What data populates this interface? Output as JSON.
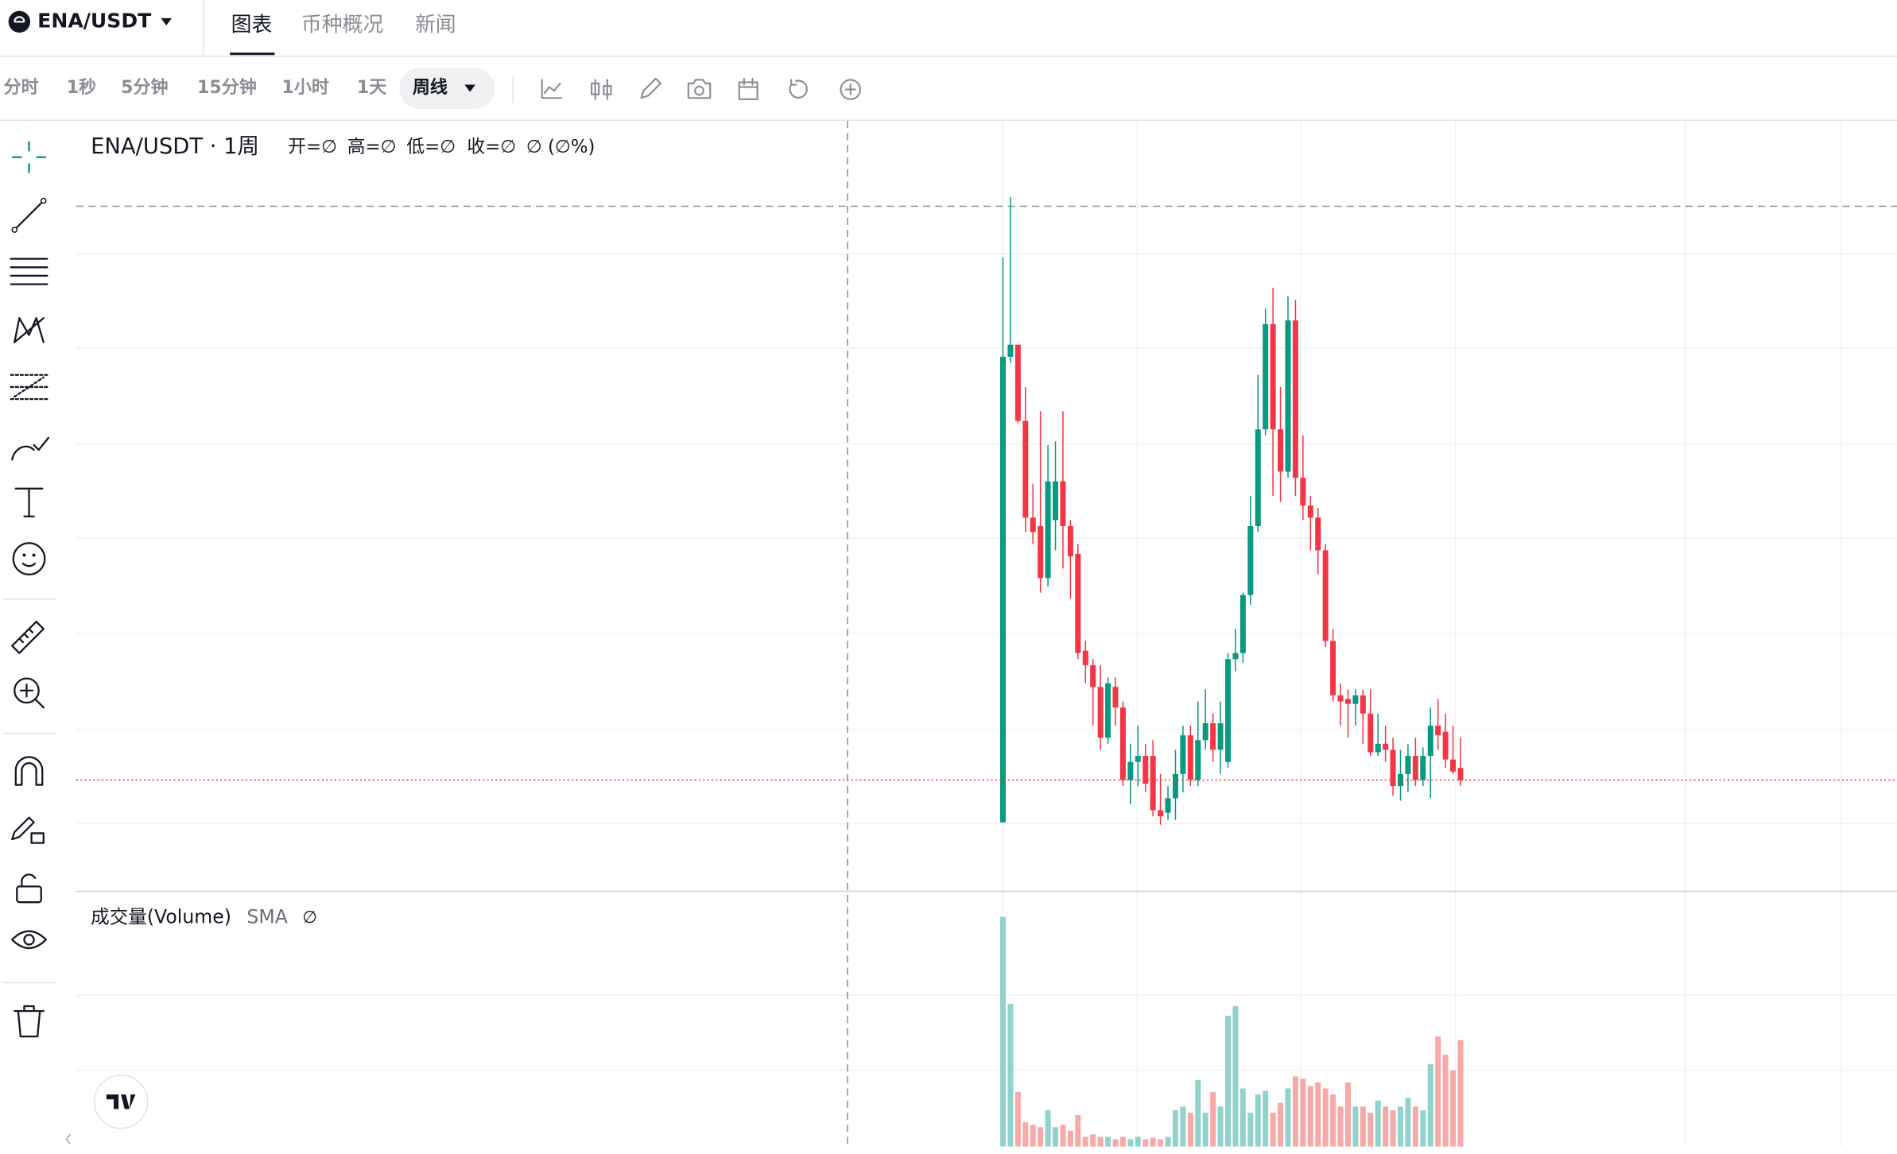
{
  "header": {
    "symbol": "ENA/USDT",
    "tabs": [
      "图表",
      "币种概况",
      "新闻"
    ]
  },
  "toolbar": {
    "intervals": [
      "分时",
      "1秒",
      "5分钟",
      "15分钟",
      "1小时",
      "1天",
      "周线"
    ]
  },
  "chart_data": {
    "type": "candlestick",
    "title": "ENA/USDT · 1周",
    "legend": [
      "开=∅",
      "高=∅",
      "低=∅",
      "收=∅",
      "∅ (∅%)"
    ],
    "volume_title": "成交量(Volume)",
    "volume_sma": "SMA",
    "volume_sma_value": "∅",
    "up_color": "#089981",
    "down_color": "#f23645",
    "volume_up_color": "#92d2cc",
    "volume_down_color": "#f7a9a7",
    "ylim": [
      0.06,
      1.65
    ],
    "volume_ylim": [
      0,
      200
    ],
    "last_price_line": true,
    "ohlc": [
      [
        0.2,
        1.3675,
        0.2,
        1.1625
      ],
      [
        1.1625,
        1.4925,
        1.15,
        1.1875
      ],
      [
        1.1875,
        1.1875,
        1.025,
        1.03
      ],
      [
        1.03,
        1.1,
        0.8,
        0.83
      ],
      [
        0.83,
        0.9,
        0.775,
        0.8
      ],
      [
        0.8125,
        1.05,
        0.675,
        0.705
      ],
      [
        0.705,
        0.98,
        0.6875,
        0.905
      ],
      [
        0.825,
        0.9875,
        0.7625,
        0.905
      ],
      [
        0.905,
        1.05,
        0.725,
        0.8125
      ],
      [
        0.8125,
        0.825,
        0.6625,
        0.75
      ],
      [
        0.755,
        0.775,
        0.5375,
        0.55
      ],
      [
        0.555,
        0.575,
        0.4875,
        0.525
      ],
      [
        0.525,
        0.5375,
        0.4,
        0.48
      ],
      [
        0.48,
        0.525,
        0.35,
        0.375
      ],
      [
        0.375,
        0.5,
        0.3625,
        0.4875
      ],
      [
        0.48,
        0.5,
        0.4,
        0.4375
      ],
      [
        0.4375,
        0.45,
        0.275,
        0.2875
      ],
      [
        0.2875,
        0.3625,
        0.2375,
        0.325
      ],
      [
        0.325,
        0.4,
        0.275,
        0.3375
      ],
      [
        0.3375,
        0.3625,
        0.2625,
        0.28
      ],
      [
        0.3375,
        0.37,
        0.2125,
        0.225
      ],
      [
        0.225,
        0.3,
        0.195,
        0.2125
      ],
      [
        0.22,
        0.275,
        0.205,
        0.25
      ],
      [
        0.25,
        0.35,
        0.205,
        0.3
      ],
      [
        0.3,
        0.4,
        0.2625,
        0.38
      ],
      [
        0.38,
        0.4,
        0.275,
        0.2875
      ],
      [
        0.2875,
        0.45,
        0.275,
        0.37
      ],
      [
        0.37,
        0.475,
        0.35,
        0.405
      ],
      [
        0.405,
        0.425,
        0.325,
        0.35
      ],
      [
        0.35,
        0.45,
        0.3,
        0.405
      ],
      [
        0.325,
        0.55,
        0.3125,
        0.5375
      ],
      [
        0.5375,
        0.6,
        0.5125,
        0.55
      ],
      [
        0.55,
        0.675,
        0.53,
        0.67
      ],
      [
        0.67,
        0.875,
        0.65,
        0.8125
      ],
      [
        0.8125,
        1.125,
        0.8,
        1.0125
      ],
      [
        1.0125,
        1.2625,
        1.0,
        1.23
      ],
      [
        1.23,
        1.305,
        0.875,
        1.0125
      ],
      [
        1.0125,
        1.1,
        0.8625,
        0.925
      ],
      [
        0.925,
        1.2875,
        0.9125,
        1.2375
      ],
      [
        1.2375,
        1.28,
        0.875,
        0.9125
      ],
      [
        0.9125,
        1.0,
        0.825,
        0.855
      ],
      [
        0.855,
        0.875,
        0.7625,
        0.83
      ],
      [
        0.83,
        0.85,
        0.7125,
        0.7625
      ],
      [
        0.7625,
        0.775,
        0.5625,
        0.575
      ],
      [
        0.575,
        0.6,
        0.45,
        0.4625
      ],
      [
        0.4625,
        0.4875,
        0.4,
        0.45
      ],
      [
        0.455,
        0.475,
        0.375,
        0.445
      ],
      [
        0.445,
        0.475,
        0.4,
        0.4625
      ],
      [
        0.4625,
        0.475,
        0.3625,
        0.425
      ],
      [
        0.425,
        0.475,
        0.3375,
        0.345
      ],
      [
        0.345,
        0.425,
        0.3375,
        0.3625
      ],
      [
        0.3625,
        0.4,
        0.325,
        0.35
      ],
      [
        0.35,
        0.375,
        0.255,
        0.275
      ],
      [
        0.275,
        0.35,
        0.245,
        0.3
      ],
      [
        0.3,
        0.3625,
        0.2625,
        0.3375
      ],
      [
        0.3375,
        0.375,
        0.275,
        0.2875
      ],
      [
        0.2875,
        0.355,
        0.275,
        0.3375
      ],
      [
        0.3375,
        0.4375,
        0.25,
        0.4
      ],
      [
        0.4,
        0.455,
        0.35,
        0.38
      ],
      [
        0.3875,
        0.425,
        0.3125,
        0.33
      ],
      [
        0.33,
        0.4,
        0.3,
        0.305
      ],
      [
        0.3125,
        0.375,
        0.275,
        0.2875
      ]
    ],
    "volume": [
      190,
      118,
      45,
      20,
      18,
      16,
      30,
      16,
      18,
      13,
      26,
      8,
      10,
      8,
      8,
      6,
      8,
      6,
      8,
      6,
      7,
      6,
      8,
      30,
      33,
      28,
      55,
      28,
      45,
      33,
      108,
      116,
      48,
      28,
      43,
      46,
      28,
      36,
      48,
      58,
      56,
      50,
      53,
      48,
      43,
      33,
      53,
      33,
      33,
      28,
      38,
      33,
      30,
      33,
      40,
      33,
      30,
      68,
      91,
      76,
      63,
      88
    ]
  }
}
